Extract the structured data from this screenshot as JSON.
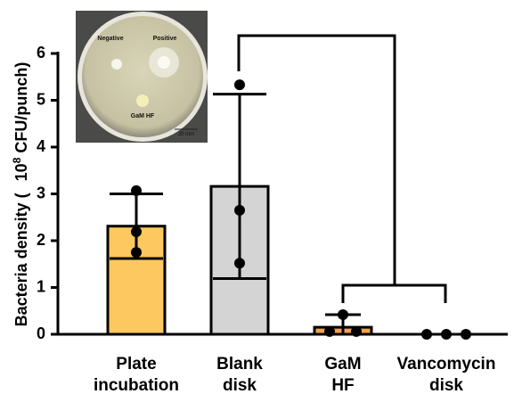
{
  "chart_data": {
    "type": "bar",
    "ylabel_parts": [
      "Bacteria density (",
      "10",
      "8",
      "CFU/punch)"
    ],
    "categories": [
      "Plate\nincubation",
      "Blank\ndisk",
      "GaM\nHF",
      "Vancomycin\ndisk"
    ],
    "values": [
      2.31,
      3.16,
      0.15,
      0
    ],
    "errors": [
      0.69,
      1.97,
      0.27,
      0
    ],
    "points": [
      [
        3.07,
        2.19,
        1.75
      ],
      [
        5.33,
        2.65,
        1.52
      ],
      [
        0.06,
        0.42,
        0.06
      ],
      [
        0,
        0,
        0
      ]
    ],
    "colors": [
      "#fcc85f",
      "#d4d4d4",
      "#f4a04c",
      "#ffffff"
    ],
    "ylim": [
      0,
      6
    ],
    "yticks": [
      0,
      1,
      2,
      3,
      4,
      5,
      6
    ],
    "inset_labels": [
      "Negative",
      "Positive",
      "GaM HF",
      "20 mm"
    ]
  }
}
